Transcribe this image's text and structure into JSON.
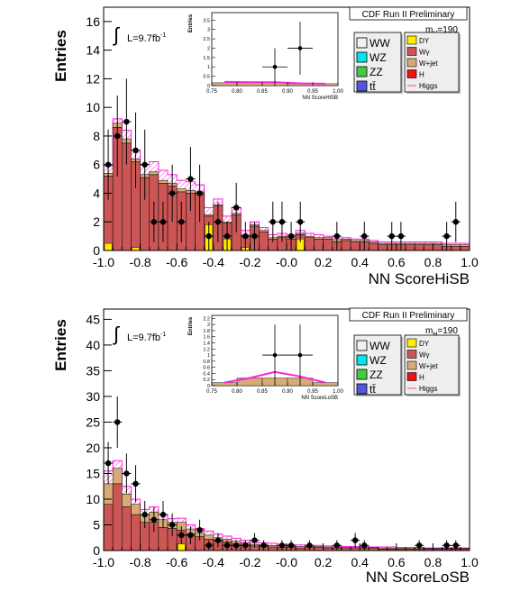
{
  "chart_data": [
    {
      "type": "bar",
      "title": "CDF Run II Preliminary",
      "mass_label": "m",
      "mass_sub": "H",
      "mass_value": "=190",
      "lumi_label": "L=9.7fb",
      "lumi_sup": "-1",
      "integral_symbol": "∫",
      "xlabel": "NN ScoreHiSB",
      "ylabel": "Entries",
      "xlim": [
        -1.0,
        1.0
      ],
      "ylim": [
        0,
        17
      ],
      "xticks": [
        "-1.0",
        "-0.8",
        "-0.6",
        "-0.4",
        "-0.2",
        "-0.0",
        "0.2",
        "0.4",
        "0.6",
        "0.8",
        "1.0"
      ],
      "yticks": [
        "0",
        "2",
        "4",
        "6",
        "8",
        "10",
        "12",
        "14",
        "16"
      ],
      "bin_width": 0.05,
      "stack_total": [
        5.4,
        8.9,
        7.8,
        6.4,
        5.3,
        5.5,
        4.9,
        4.7,
        4.3,
        4.2,
        4.1,
        2.5,
        3.2,
        2.0,
        2.6,
        1.1,
        1.8,
        1.4,
        0.9,
        1.0,
        0.9,
        1.2,
        1.0,
        0.9,
        0.9,
        0.7,
        0.8,
        0.7,
        0.7,
        0.6,
        0.5,
        0.5,
        0.5,
        0.5,
        0.5,
        0.5,
        0.5,
        0.4,
        0.4,
        0.4
      ],
      "wjet": [
        0.2,
        0.3,
        0.3,
        0.2,
        0.2,
        0.2,
        0.2,
        0.2,
        0.2,
        0.2,
        0.2,
        0.1,
        0.1,
        0.1,
        0.1,
        0.1,
        0.1,
        0.1,
        0.1,
        0.1,
        0.1,
        0.1,
        0.1,
        0.1,
        0.1,
        0.1,
        0.1,
        0.1,
        0.1,
        0.1,
        0.1,
        0.1,
        0.1,
        0.1,
        0.1,
        0.1,
        0.1,
        0.1,
        0.1,
        0.1
      ],
      "dy": [
        0.5,
        0.0,
        0.0,
        0.2,
        0.0,
        0.0,
        0.0,
        0.0,
        0.0,
        0.0,
        0.0,
        1.8,
        0.0,
        0.8,
        0.0,
        0.2,
        0.0,
        0.0,
        0.0,
        0.0,
        0.0,
        0.8,
        0.0,
        0.0,
        0.0,
        0.0,
        0.0,
        0.0,
        0.0,
        0.0,
        0.0,
        0.0,
        0.0,
        0.0,
        0.0,
        0.0,
        0.0,
        0.0,
        0.0,
        0.0
      ],
      "higgs": [
        5.9,
        9.2,
        8.4,
        7.0,
        6.0,
        6.2,
        5.6,
        5.3,
        4.9,
        4.8,
        4.6,
        3.0,
        3.6,
        2.4,
        3.0,
        1.4,
        2.0,
        1.6,
        1.1,
        1.2,
        1.1,
        1.4,
        1.2,
        1.1,
        1.0,
        0.8,
        0.9,
        0.8,
        0.8,
        0.7,
        0.6,
        0.6,
        0.6,
        0.6,
        0.6,
        0.6,
        0.6,
        0.5,
        0.5,
        0.5
      ],
      "data_points": [
        {
          "x": -0.975,
          "y": 6
        },
        {
          "x": -0.925,
          "y": 8
        },
        {
          "x": -0.875,
          "y": 9
        },
        {
          "x": -0.825,
          "y": 7
        },
        {
          "x": -0.775,
          "y": 6
        },
        {
          "x": -0.725,
          "y": 2
        },
        {
          "x": -0.675,
          "y": 2
        },
        {
          "x": -0.625,
          "y": 4
        },
        {
          "x": -0.575,
          "y": 2
        },
        {
          "x": -0.525,
          "y": 5
        },
        {
          "x": -0.475,
          "y": 4
        },
        {
          "x": -0.425,
          "y": 1
        },
        {
          "x": -0.375,
          "y": 2
        },
        {
          "x": -0.325,
          "y": 1
        },
        {
          "x": -0.275,
          "y": 3
        },
        {
          "x": -0.225,
          "y": 1
        },
        {
          "x": -0.175,
          "y": 1
        },
        {
          "x": -0.075,
          "y": 2
        },
        {
          "x": -0.025,
          "y": 2
        },
        {
          "x": 0.025,
          "y": 1
        },
        {
          "x": 0.075,
          "y": 2
        },
        {
          "x": 0.275,
          "y": 1
        },
        {
          "x": 0.425,
          "y": 1
        },
        {
          "x": 0.575,
          "y": 1
        },
        {
          "x": 0.625,
          "y": 1
        },
        {
          "x": 0.875,
          "y": 1
        },
        {
          "x": 0.925,
          "y": 2
        }
      ],
      "inset": {
        "xlabel": "NN ScoreHiSB",
        "ylabel": "Entries",
        "xlim": [
          0.75,
          1.0
        ],
        "ylim": [
          0,
          3.9
        ],
        "xticks": [
          "0.75",
          "0.80",
          "0.85",
          "0.90",
          "0.95",
          "1.00"
        ],
        "yticks": [
          "0",
          "0.5",
          "1",
          "1.5",
          "2",
          "2.5",
          "3",
          "3.5"
        ],
        "stack": [
          0.15,
          0.15,
          0.15,
          0.1,
          0.1
        ],
        "higgs": [
          0.2,
          0.18,
          0.18,
          0.12,
          0.1
        ],
        "points": [
          {
            "x": 0.875,
            "y": 1
          },
          {
            "x": 0.925,
            "y": 2
          }
        ]
      }
    },
    {
      "type": "bar",
      "title": "CDF Run II Preliminary",
      "mass_label": "m",
      "mass_sub": "H",
      "mass_value": "=190",
      "lumi_label": "L=9.7fb",
      "lumi_sup": "-1",
      "integral_symbol": "∫",
      "xlabel": "NN ScoreLoSB",
      "ylabel": "Entries",
      "xlim": [
        -1.0,
        1.0
      ],
      "ylim": [
        0,
        47
      ],
      "xticks": [
        "-1.0",
        "-0.8",
        "-0.6",
        "-0.4",
        "-0.2",
        "-0.0",
        "0.2",
        "0.4",
        "0.6",
        "0.8",
        "1.0"
      ],
      "yticks": [
        "0",
        "5",
        "10",
        "15",
        "20",
        "25",
        "30",
        "35",
        "40",
        "45"
      ],
      "bin_width": 0.05,
      "stack_total": [
        13.0,
        16.0,
        11.0,
        9.0,
        7.0,
        7.5,
        6.0,
        5.5,
        5.5,
        4.2,
        3.5,
        3.0,
        2.5,
        2.2,
        1.8,
        1.5,
        1.2,
        1.1,
        1.0,
        0.9,
        0.8,
        0.8,
        0.8,
        0.8,
        0.7,
        0.7,
        0.6,
        0.6,
        0.6,
        0.6,
        0.5,
        0.5,
        0.5,
        0.5,
        0.5,
        0.4,
        0.4,
        0.4,
        0.4,
        0.4
      ],
      "wjet": [
        4.0,
        3.0,
        2.5,
        2.0,
        1.5,
        2.0,
        1.5,
        1.2,
        1.5,
        1.0,
        0.8,
        0.8,
        0.6,
        0.5,
        0.5,
        0.4,
        0.3,
        0.3,
        0.3,
        0.3,
        0.2,
        0.3,
        0.2,
        0.2,
        0.2,
        0.2,
        0.2,
        0.2,
        0.2,
        0.2,
        0.2,
        0.2,
        0.2,
        0.2,
        0.2,
        0.1,
        0.1,
        0.1,
        0.1,
        0.1
      ],
      "dy": [
        0.0,
        0.0,
        0.0,
        0.0,
        0.0,
        0.0,
        0.0,
        0.0,
        1.3,
        0.0,
        0.0,
        0.0,
        0.0,
        0.0,
        0.0,
        0.0,
        0.0,
        0.0,
        0.0,
        0.0,
        0.0,
        0.0,
        0.0,
        0.0,
        0.0,
        0.0,
        0.0,
        0.0,
        0.0,
        0.0,
        0.0,
        0.0,
        0.0,
        0.0,
        0.0,
        0.0,
        0.0,
        0.0,
        0.0,
        0.0
      ],
      "higgs": [
        15.5,
        17.5,
        12.5,
        10.0,
        8.0,
        8.5,
        7.0,
        6.2,
        6.3,
        5.0,
        4.3,
        3.8,
        3.2,
        2.8,
        2.4,
        2.0,
        1.6,
        1.5,
        1.4,
        1.2,
        1.1,
        1.1,
        1.0,
        1.0,
        0.9,
        0.9,
        0.8,
        0.8,
        0.8,
        0.7,
        0.7,
        0.7,
        0.6,
        0.6,
        0.6,
        0.5,
        0.5,
        0.5,
        0.5,
        0.5
      ],
      "data_points": [
        {
          "x": -0.975,
          "y": 17
        },
        {
          "x": -0.925,
          "y": 25
        },
        {
          "x": -0.875,
          "y": 15
        },
        {
          "x": -0.825,
          "y": 13
        },
        {
          "x": -0.775,
          "y": 7
        },
        {
          "x": -0.725,
          "y": 6
        },
        {
          "x": -0.675,
          "y": 7
        },
        {
          "x": -0.625,
          "y": 5
        },
        {
          "x": -0.575,
          "y": 3
        },
        {
          "x": -0.525,
          "y": 3
        },
        {
          "x": -0.475,
          "y": 4
        },
        {
          "x": -0.425,
          "y": 1
        },
        {
          "x": -0.375,
          "y": 2
        },
        {
          "x": -0.325,
          "y": 1
        },
        {
          "x": -0.275,
          "y": 1
        },
        {
          "x": -0.225,
          "y": 1
        },
        {
          "x": -0.175,
          "y": 2
        },
        {
          "x": -0.125,
          "y": 1
        },
        {
          "x": -0.025,
          "y": 1
        },
        {
          "x": 0.025,
          "y": 1
        },
        {
          "x": 0.125,
          "y": 1
        },
        {
          "x": 0.275,
          "y": 1
        },
        {
          "x": 0.375,
          "y": 2
        },
        {
          "x": 0.425,
          "y": 1
        },
        {
          "x": 0.725,
          "y": 1
        },
        {
          "x": 0.875,
          "y": 1
        },
        {
          "x": 0.925,
          "y": 1
        }
      ],
      "inset": {
        "xlabel": "NN ScoreLoSB",
        "ylabel": "Entries",
        "xlim": [
          0.75,
          1.0
        ],
        "ylim": [
          0,
          2.3
        ],
        "xticks": [
          "0.75",
          "0.80",
          "0.85",
          "0.90",
          "0.95",
          "1.00"
        ],
        "yticks": [
          "0",
          "0.2",
          "0.4",
          "0.6",
          "0.8",
          "1",
          "1.2",
          "1.4",
          "1.6",
          "1.8",
          "2",
          "2.2"
        ],
        "stack": [
          0.1,
          0.25,
          0.25,
          0.25,
          0.1
        ],
        "higgs": [
          0.1,
          0.25,
          0.45,
          0.3,
          0.1
        ],
        "points": [
          {
            "x": 0.875,
            "y": 1
          },
          {
            "x": 0.925,
            "y": 1
          }
        ]
      }
    }
  ],
  "legend": {
    "left": [
      {
        "name": "WW",
        "color": "#f2f2f2"
      },
      {
        "name": "WZ",
        "color": "#00e6f0"
      },
      {
        "name": "ZZ",
        "color": "#44cc44"
      },
      {
        "name": "tt̄",
        "color": "#5555dd"
      }
    ],
    "right": [
      {
        "name": "DY",
        "color": "#ffee00"
      },
      {
        "name": "Wγ",
        "color": "#cc5555"
      },
      {
        "name": "W+jet",
        "color": "#d8aa77"
      },
      {
        "name": "H",
        "color": "#ee1111"
      },
      {
        "name": "Higgs",
        "color": "#ff44aa"
      }
    ]
  },
  "colors": {
    "wgamma": "#cc5555",
    "wjet": "#d8aa77",
    "dy": "#ffee00",
    "higgs": "#ff22dd",
    "data": "#000000"
  }
}
